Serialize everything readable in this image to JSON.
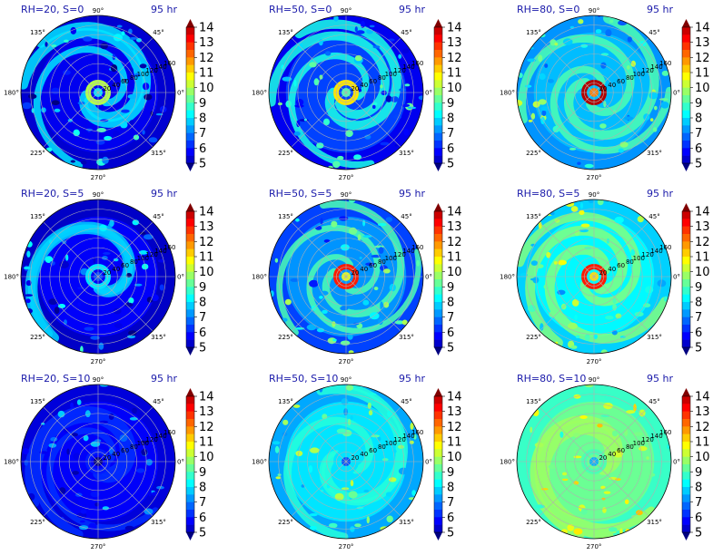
{
  "chart_data": {
    "type": "heatmap",
    "layout": "3x3 polar panels",
    "colormap": "jet",
    "grid": true,
    "colorbar": {
      "ticks": [
        "5",
        "6",
        "7",
        "8",
        "9",
        "10",
        "11",
        "12",
        "13",
        "14"
      ],
      "min": 5,
      "max": 14,
      "extend": "both"
    },
    "angle_labels": [
      "90°",
      "135°",
      "180°",
      "225°",
      "270°",
      "315°",
      "0°",
      "45°"
    ],
    "radial_labels": [
      "20",
      "40",
      "60",
      "80",
      "100",
      "120",
      "140",
      "160"
    ],
    "panels": [
      {
        "title": "RH=20, S=0",
        "time": "95 hr",
        "eye_value": 10,
        "eye_ring": 9.5,
        "bg": 5.6,
        "band": 8,
        "outer": 5.3
      },
      {
        "title": "RH=50, S=0",
        "time": "95 hr",
        "eye_value": 11,
        "eye_ring": 10.5,
        "bg": 6.4,
        "band": 8.5,
        "outer": 5.6
      },
      {
        "title": "RH=80, S=0",
        "time": "95 hr",
        "eye_value": 14,
        "eye_ring": 13.5,
        "bg": 7.6,
        "band": 9,
        "outer": 7.2
      },
      {
        "title": "RH=20, S=5",
        "time": "95 hr",
        "eye_value": 8,
        "eye_ring": 8,
        "bg": 5.7,
        "band": 7.8,
        "outer": 5.2
      },
      {
        "title": "RH=50, S=5",
        "time": "95 hr",
        "eye_value": 13,
        "eye_ring": 12,
        "bg": 7.2,
        "band": 9,
        "outer": 6.4
      },
      {
        "title": "RH=80, S=5",
        "time": "95 hr",
        "eye_value": 13,
        "eye_ring": 12.5,
        "bg": 8.2,
        "band": 9.5,
        "outer": 7.8
      },
      {
        "title": "RH=20, S=10",
        "time": "95 hr",
        "eye_value": 6,
        "eye_ring": 6,
        "bg": 5.7,
        "band": 6.2,
        "outer": 5.4
      },
      {
        "title": "RH=50, S=10",
        "time": "95 hr",
        "eye_value": 8,
        "eye_ring": 8,
        "bg": 8.0,
        "band": 8.6,
        "outer": 7.4
      },
      {
        "title": "RH=80, S=10",
        "time": "95 hr",
        "eye_value": 9,
        "eye_ring": 9,
        "bg": 9.3,
        "band": 9.8,
        "outer": 8.8
      }
    ]
  }
}
